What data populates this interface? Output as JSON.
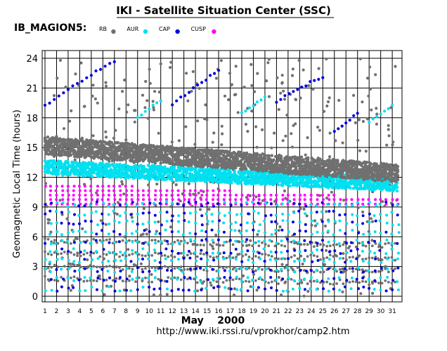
{
  "header": {
    "title": "IKI - Satellite Situation Center (SSC)",
    "satellite": "IB_MAGION5:"
  },
  "footer": {
    "url": "http://www.iki.rssi.ru/vprokhor/camp2.htm"
  },
  "chart_data": {
    "type": "scatter",
    "title": "IKI - Satellite Situation Center (SSC)",
    "ylabel": "Geomagnetic Local Time (hours)",
    "xlabel": "May    2000",
    "x_month": "May",
    "x_year": "2000",
    "x_ticks": [
      "1",
      "2",
      "3",
      "4",
      "5",
      "6",
      "7",
      "8",
      "9",
      "10",
      "11",
      "12",
      "13",
      "14",
      "15",
      "16",
      "17",
      "18",
      "19",
      "20",
      "21",
      "22",
      "23",
      "24",
      "25",
      "26",
      "27",
      "28",
      "29",
      "30",
      "31"
    ],
    "xlim": [
      1,
      31.6
    ],
    "y_ticks": [
      "0",
      "3",
      "6",
      "9",
      "12",
      "15",
      "18",
      "21",
      "24"
    ],
    "ylim": [
      0,
      24.5
    ],
    "grid": true,
    "legend_placement": "top-left",
    "legend": [
      {
        "name": "RB",
        "color": "#707070"
      },
      {
        "name": "AUR",
        "color": "#00e0f0"
      },
      {
        "name": "CAP",
        "color": "#0000dd"
      },
      {
        "name": "CUSP",
        "color": "#ff00ff"
      }
    ],
    "bands": [
      {
        "series": "RB",
        "description_start": [
          1,
          15.2
        ],
        "description_end": [
          31.5,
          12.4
        ],
        "half_width": 0.9
      },
      {
        "series": "AUR",
        "start": [
          1,
          13.0
        ],
        "end": [
          31.5,
          11.3
        ],
        "half_width": 0.7
      },
      {
        "series": "CUSP",
        "start": [
          1,
          11.5
        ],
        "end": [
          31.5,
          9.9
        ],
        "half_width": 0.7
      }
    ],
    "diagonal_tracks": [
      {
        "series": "CAP",
        "points": [
          [
            1,
            19.3
          ],
          [
            7,
            23.8
          ]
        ]
      },
      {
        "series": "AUR",
        "points": [
          [
            9,
            18.0
          ],
          [
            11,
            19.8
          ]
        ]
      },
      {
        "series": "CAP",
        "points": [
          [
            12,
            19.4
          ],
          [
            16,
            22.8
          ]
        ]
      },
      {
        "series": "AUR",
        "points": [
          [
            18,
            18.5
          ],
          [
            20,
            20.0
          ]
        ]
      },
      {
        "series": "CAP",
        "points": [
          [
            21,
            19.7
          ],
          [
            25,
            22.2
          ]
        ]
      },
      {
        "series": "CAP",
        "points": [
          [
            26,
            16.5
          ],
          [
            28,
            18.5
          ]
        ]
      },
      {
        "series": "AUR",
        "points": [
          [
            29,
            17.6
          ],
          [
            31,
            19.2
          ]
        ]
      }
    ]
  }
}
